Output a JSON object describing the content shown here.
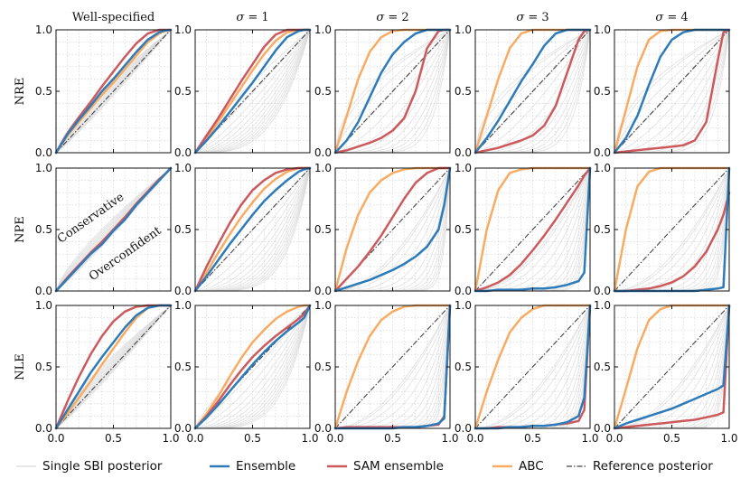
{
  "chart_data": {
    "type": "line",
    "grid": true,
    "layout": {
      "rows": 3,
      "cols": 5
    },
    "column_titles": [
      {
        "text": "Well-specified",
        "math": false
      },
      {
        "text": "σ = 1",
        "math": true
      },
      {
        "text": "σ = 2",
        "math": true
      },
      {
        "text": "σ = 3",
        "math": true
      },
      {
        "text": "σ = 4",
        "math": true
      }
    ],
    "row_labels": [
      "NRE",
      "NPE",
      "NLE"
    ],
    "xlim": [
      0,
      1
    ],
    "ylim": [
      0,
      1
    ],
    "x_ticks": [
      "0.0",
      "0.5",
      "1.0"
    ],
    "y_ticks": [
      "0.0",
      "0.5",
      "1.0"
    ],
    "annotations": [
      {
        "row": 1,
        "col": 0,
        "text": "Conservative",
        "x": 0.32,
        "y": 0.57,
        "rotation_deg": 35
      },
      {
        "row": 1,
        "col": 0,
        "text": "Overconfident",
        "x": 0.62,
        "y": 0.28,
        "rotation_deg": 35
      }
    ],
    "legend": {
      "position": "bottom",
      "entries": [
        {
          "key": "single",
          "label": "Single SBI posterior",
          "color": "#d9d9d9"
        },
        {
          "key": "ensemble",
          "label": "Ensemble",
          "color": "#2e7bba"
        },
        {
          "key": "sam",
          "label": "SAM ensemble",
          "color": "#cc5a5d"
        },
        {
          "key": "abc",
          "label": "ABC",
          "color": "#f8ac63"
        },
        {
          "key": "ref",
          "label": "Reference posterior",
          "color": "#444444",
          "dash": true
        }
      ]
    },
    "single_posterior_count": 12,
    "reference": {
      "x": [
        0,
        1
      ],
      "y": [
        0,
        1
      ]
    },
    "series_x": [
      0,
      0.1,
      0.2,
      0.3,
      0.4,
      0.5,
      0.6,
      0.7,
      0.8,
      0.9,
      0.95,
      1.0
    ],
    "panels": [
      [
        {
          "ensemble": [
            0,
            0.15,
            0.27,
            0.38,
            0.5,
            0.6,
            0.71,
            0.82,
            0.92,
            0.98,
            0.995,
            1
          ],
          "sam": [
            0,
            0.16,
            0.29,
            0.41,
            0.54,
            0.66,
            0.78,
            0.89,
            0.97,
            1,
            1,
            1
          ],
          "abc": [
            0,
            0.14,
            0.25,
            0.36,
            0.47,
            0.57,
            0.68,
            0.79,
            0.9,
            0.97,
            0.99,
            1
          ],
          "singles": "tight-over"
        },
        {
          "ensemble": [
            0,
            0.1,
            0.21,
            0.33,
            0.45,
            0.57,
            0.7,
            0.83,
            0.94,
            0.99,
            1,
            1
          ],
          "sam": [
            0,
            0.14,
            0.28,
            0.43,
            0.58,
            0.72,
            0.86,
            0.96,
            1,
            1,
            1,
            1
          ],
          "abc": [
            0,
            0.12,
            0.25,
            0.39,
            0.53,
            0.67,
            0.8,
            0.91,
            0.98,
            1,
            1,
            1
          ],
          "singles": "mild-under"
        },
        {
          "ensemble": [
            0,
            0.1,
            0.25,
            0.45,
            0.65,
            0.8,
            0.9,
            0.97,
            1,
            1,
            1,
            1
          ],
          "sam": [
            0,
            0.02,
            0.05,
            0.08,
            0.12,
            0.18,
            0.28,
            0.5,
            0.85,
            0.99,
            1,
            1
          ],
          "abc": [
            0,
            0.3,
            0.6,
            0.82,
            0.94,
            0.99,
            1,
            1,
            1,
            1,
            1,
            1
          ],
          "singles": "wide-under"
        },
        {
          "ensemble": [
            0,
            0.12,
            0.26,
            0.42,
            0.58,
            0.72,
            0.87,
            0.97,
            1,
            1,
            1,
            1
          ],
          "sam": [
            0,
            0.02,
            0.04,
            0.07,
            0.1,
            0.14,
            0.22,
            0.38,
            0.65,
            0.92,
            0.99,
            1
          ],
          "abc": [
            0,
            0.3,
            0.6,
            0.85,
            0.97,
            1,
            1,
            1,
            1,
            1,
            1,
            1
          ],
          "singles": "wide-under"
        },
        {
          "ensemble": [
            0,
            0.12,
            0.3,
            0.55,
            0.78,
            0.92,
            0.98,
            1,
            1,
            1,
            1,
            1
          ],
          "sam": [
            0,
            0.01,
            0.02,
            0.03,
            0.04,
            0.05,
            0.06,
            0.1,
            0.25,
            0.75,
            0.98,
            1
          ],
          "abc": [
            0,
            0.35,
            0.7,
            0.92,
            0.99,
            1,
            1,
            1,
            1,
            1,
            1,
            1
          ],
          "singles": "wide-under"
        }
      ],
      [
        {
          "ensemble": [
            0,
            0.1,
            0.2,
            0.3,
            0.38,
            0.49,
            0.58,
            0.7,
            0.8,
            0.9,
            0.95,
            1
          ],
          "sam": [
            0,
            0.11,
            0.21,
            0.31,
            0.4,
            0.5,
            0.6,
            0.71,
            0.81,
            0.91,
            0.95,
            1
          ],
          "abc": [
            0,
            0.1,
            0.2,
            0.3,
            0.39,
            0.5,
            0.59,
            0.7,
            0.8,
            0.9,
            0.95,
            1
          ],
          "singles": "tight-over"
        },
        {
          "ensemble": [
            0,
            0.12,
            0.25,
            0.38,
            0.5,
            0.62,
            0.73,
            0.82,
            0.9,
            0.97,
            0.99,
            1
          ],
          "sam": [
            0,
            0.2,
            0.38,
            0.55,
            0.7,
            0.82,
            0.9,
            0.96,
            0.99,
            1,
            1,
            1
          ],
          "abc": [
            0,
            0.15,
            0.31,
            0.46,
            0.6,
            0.72,
            0.83,
            0.91,
            0.97,
            1,
            1,
            1
          ],
          "singles": "npe-low"
        },
        {
          "ensemble": [
            0,
            0.03,
            0.06,
            0.09,
            0.13,
            0.17,
            0.22,
            0.28,
            0.36,
            0.5,
            0.7,
            1
          ],
          "sam": [
            0,
            0.1,
            0.2,
            0.32,
            0.45,
            0.6,
            0.75,
            0.88,
            0.96,
            1,
            1,
            1
          ],
          "abc": [
            0,
            0.35,
            0.62,
            0.8,
            0.9,
            0.96,
            0.99,
            1,
            1,
            1,
            1,
            1
          ],
          "singles": "very-low"
        },
        {
          "ensemble": [
            0,
            0,
            0.01,
            0.01,
            0.01,
            0.02,
            0.02,
            0.03,
            0.05,
            0.08,
            0.15,
            1
          ],
          "sam": [
            0,
            0.03,
            0.07,
            0.13,
            0.22,
            0.33,
            0.45,
            0.58,
            0.72,
            0.86,
            0.94,
            1
          ],
          "abc": [
            0,
            0.5,
            0.82,
            0.96,
            0.99,
            1,
            1,
            1,
            1,
            1,
            1,
            1
          ],
          "singles": "very-low"
        },
        {
          "ensemble": [
            0,
            0,
            0,
            0,
            0,
            0,
            0,
            0,
            0.01,
            0.02,
            0.03,
            1
          ],
          "sam": [
            0,
            0,
            0.01,
            0.02,
            0.04,
            0.07,
            0.12,
            0.2,
            0.32,
            0.5,
            0.62,
            0.8
          ],
          "abc": [
            0,
            0.5,
            0.85,
            0.97,
            1,
            1,
            1,
            1,
            1,
            1,
            1,
            1
          ],
          "singles": "very-low"
        }
      ],
      [
        {
          "ensemble": [
            0,
            0.15,
            0.3,
            0.45,
            0.58,
            0.7,
            0.82,
            0.92,
            0.98,
            1,
            1,
            1
          ],
          "sam": [
            0,
            0.22,
            0.42,
            0.6,
            0.75,
            0.87,
            0.95,
            0.99,
            1,
            1,
            1,
            1
          ],
          "abc": [
            0,
            0.12,
            0.25,
            0.38,
            0.52,
            0.65,
            0.78,
            0.9,
            0.98,
            1,
            1,
            1
          ],
          "singles": "tight-over"
        },
        {
          "ensemble": [
            0,
            0.09,
            0.19,
            0.3,
            0.41,
            0.52,
            0.62,
            0.71,
            0.79,
            0.86,
            0.9,
            1
          ],
          "sam": [
            0,
            0.1,
            0.22,
            0.35,
            0.47,
            0.58,
            0.67,
            0.75,
            0.82,
            0.89,
            0.93,
            1
          ],
          "abc": [
            0,
            0.12,
            0.26,
            0.42,
            0.57,
            0.7,
            0.8,
            0.89,
            0.95,
            0.99,
            1,
            1
          ],
          "singles": "nle-mid"
        },
        {
          "ensemble": [
            0,
            0,
            0,
            0,
            0,
            0,
            0.01,
            0.01,
            0.02,
            0.04,
            0.08,
            1
          ],
          "sam": [
            0,
            0.01,
            0.01,
            0.01,
            0.01,
            0.01,
            0.01,
            0.01,
            0.02,
            0.03,
            0.1,
            1
          ],
          "abc": [
            0,
            0.3,
            0.55,
            0.75,
            0.88,
            0.95,
            0.99,
            1,
            1,
            1,
            1,
            1
          ],
          "singles": "very-low"
        },
        {
          "ensemble": [
            0,
            0,
            0,
            0.01,
            0.01,
            0.02,
            0.02,
            0.03,
            0.05,
            0.1,
            0.25,
            1
          ],
          "sam": [
            0,
            0,
            0.01,
            0.01,
            0.01,
            0.02,
            0.02,
            0.03,
            0.04,
            0.06,
            0.15,
            1
          ],
          "abc": [
            0,
            0.3,
            0.56,
            0.78,
            0.9,
            0.97,
            1,
            1,
            1,
            1,
            1,
            1
          ],
          "singles": "very-low"
        },
        {
          "ensemble": [
            0,
            0.04,
            0.07,
            0.1,
            0.13,
            0.16,
            0.2,
            0.24,
            0.28,
            0.32,
            0.35,
            1
          ],
          "sam": [
            0,
            0.01,
            0.02,
            0.03,
            0.04,
            0.05,
            0.06,
            0.07,
            0.09,
            0.11,
            0.13,
            1
          ],
          "abc": [
            0,
            0.32,
            0.65,
            0.88,
            0.97,
            1,
            1,
            1,
            1,
            1,
            1,
            1
          ],
          "singles": "very-low"
        }
      ]
    ]
  }
}
